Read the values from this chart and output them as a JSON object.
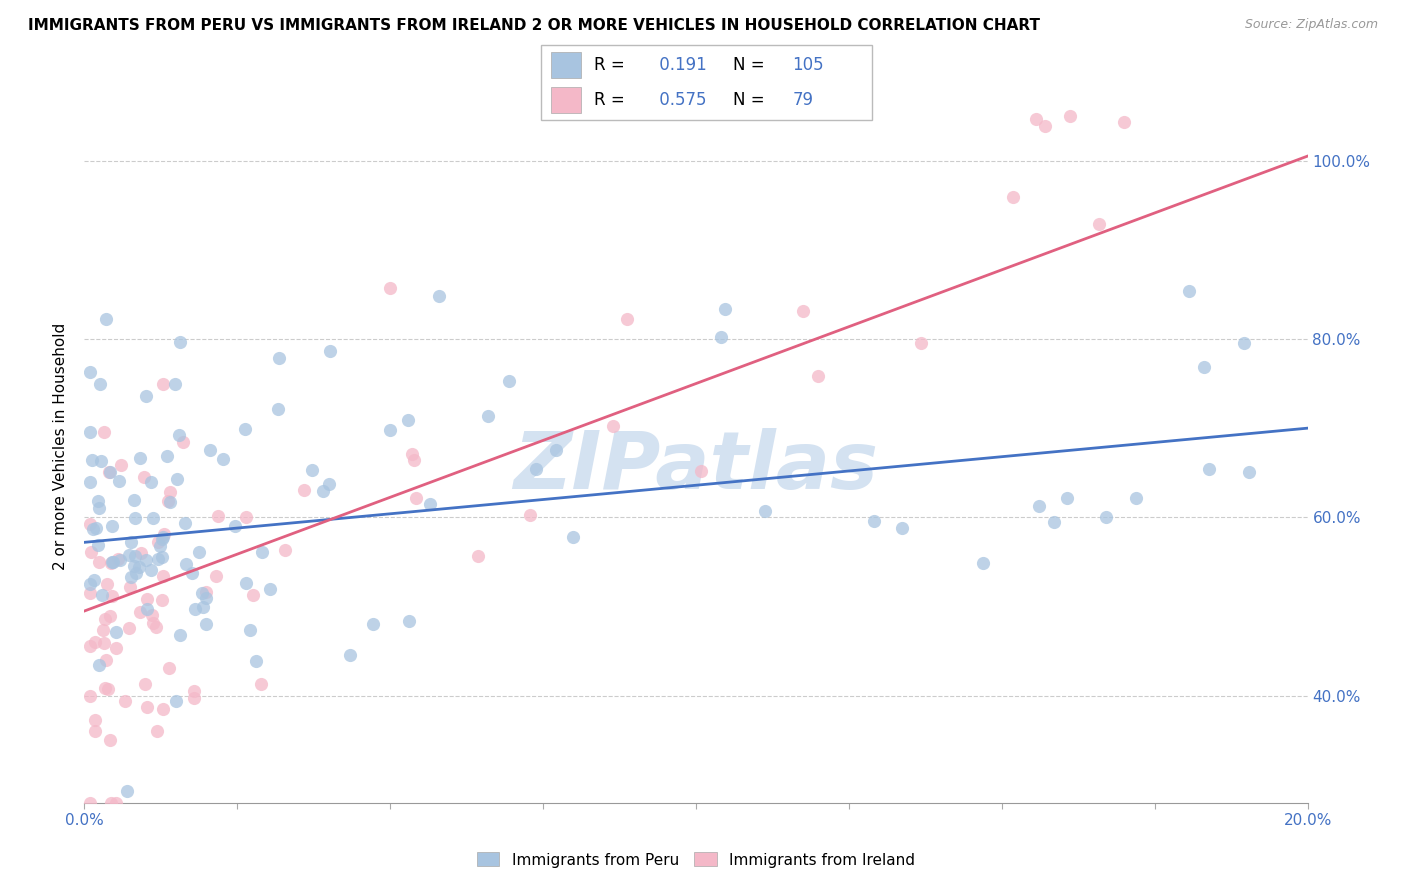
{
  "title": "IMMIGRANTS FROM PERU VS IMMIGRANTS FROM IRELAND 2 OR MORE VEHICLES IN HOUSEHOLD CORRELATION CHART",
  "source": "Source: ZipAtlas.com",
  "ylabel": "2 or more Vehicles in Household",
  "r_peru": 0.191,
  "n_peru": 105,
  "r_ireland": 0.575,
  "n_ireland": 79,
  "peru_color": "#a8c4e0",
  "ireland_color": "#f4b8c8",
  "peru_line_color": "#4472c4",
  "ireland_line_color": "#e06080",
  "watermark": "ZIPatlas",
  "watermark_color": "#b8cfe8",
  "xmin": 0.0,
  "xmax": 0.2,
  "ymin": 0.28,
  "ymax": 1.08,
  "y_ticks": [
    0.4,
    0.6,
    0.8,
    1.0
  ],
  "x_ticks": [
    0.0,
    0.025,
    0.05,
    0.075,
    0.1,
    0.125,
    0.15,
    0.175,
    0.2
  ],
  "peru_line_y0": 0.572,
  "peru_line_y1": 0.7,
  "ireland_line_y0": 0.495,
  "ireland_line_y1": 1.005
}
